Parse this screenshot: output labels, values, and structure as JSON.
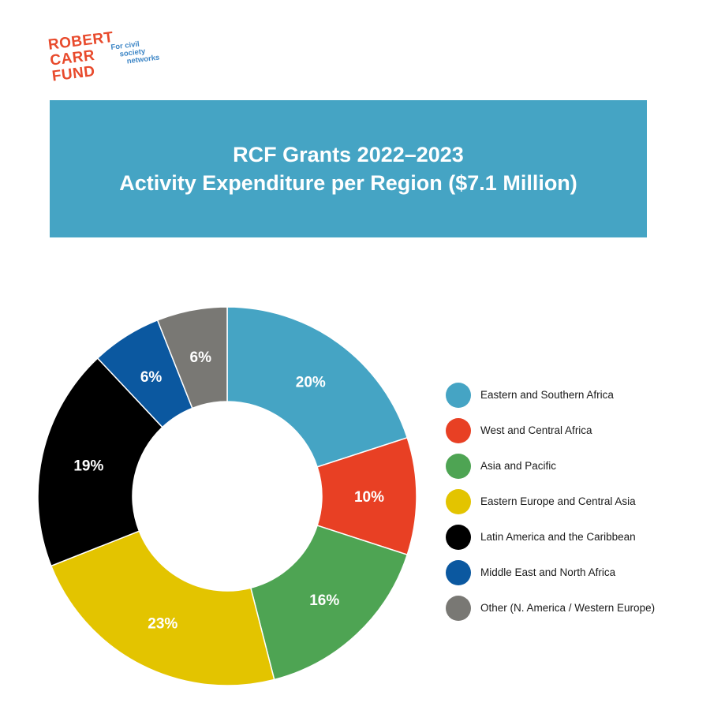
{
  "logo": {
    "lines": [
      "ROBERT",
      "CARR",
      "FUND"
    ],
    "tagline": [
      "For civil",
      "society",
      "networks"
    ]
  },
  "chart_data": {
    "type": "pie",
    "title": "RCF Grants 2022–2023",
    "subtitle": "Activity Expenditure per Region ($7.1 Million)",
    "legend_position": "right",
    "series": [
      {
        "name": "Eastern and Southern Africa",
        "value": 20,
        "label": "20%",
        "color": "#45a4c4"
      },
      {
        "name": "West and Central Africa",
        "value": 10,
        "label": "10%",
        "color": "#e84024"
      },
      {
        "name": "Asia and Pacific",
        "value": 16,
        "label": "16%",
        "color": "#4ea453"
      },
      {
        "name": "Eastern Europe and Central Asia",
        "value": 23,
        "label": "23%",
        "color": "#e3c400"
      },
      {
        "name": "Latin America and the Caribbean",
        "value": 19,
        "label": "19%",
        "color": "#000000"
      },
      {
        "name": "Middle East and North Africa",
        "value": 6,
        "label": "6%",
        "color": "#0b58a0"
      },
      {
        "name": "Other (N. America / Western Europe)",
        "value": 6,
        "label": "6%",
        "color": "#797874"
      }
    ]
  }
}
